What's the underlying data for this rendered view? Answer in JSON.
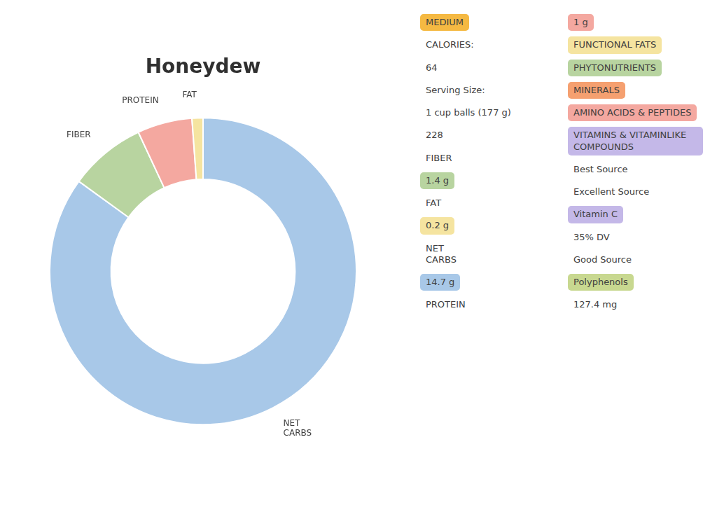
{
  "chart_data": {
    "type": "doughnut",
    "title": "Honeydew",
    "categories": [
      "NET\nCARBS",
      "FIBER",
      "PROTEIN",
      "FAT"
    ],
    "values": [
      14.7,
      1.4,
      1.0,
      0.2
    ],
    "colors": [
      "#A8C8E8",
      "#B8D4A0",
      "#F4A8A0",
      "#F5E4A0"
    ],
    "data_labels": false,
    "annotations": [
      {
        "text": "MEDIUM",
        "color": "#F5B942"
      },
      {
        "text": "CALORIES:"
      },
      {
        "text": "64"
      },
      {
        "text": "Serving Size:"
      },
      {
        "text": "1 cup balls (177 g)"
      },
      {
        "text": "228"
      },
      {
        "text": "FIBER"
      },
      {
        "text": "1.4 g",
        "color": "#B8D4A0"
      },
      {
        "text": "FAT"
      },
      {
        "text": "0.2 g",
        "color": "#F5E4A0"
      },
      {
        "text": "NET\nCARBS"
      },
      {
        "text": "14.7 g",
        "color": "#A8C8E8"
      },
      {
        "text": "PROTEIN"
      },
      {
        "text": "1 g",
        "color": "#F4A8A0"
      },
      {
        "text": "FUNCTIONAL FATS",
        "color": "#F5E4A0"
      },
      {
        "text": "PHYTONUTRIENTS",
        "color": "#B8D4A0"
      },
      {
        "text": "MINERALS",
        "color": "#F5A070"
      },
      {
        "text": "AMINO ACIDS & PEPTIDES",
        "color": "#F4A8A0"
      },
      {
        "text": "VITAMINS & VITAMINLIKE COMPOUNDS",
        "color": "#C4B8E8"
      },
      {
        "text": "Best Source"
      },
      {
        "text": "Excellent Source"
      },
      {
        "text": "Vitamin C",
        "color": "#C4B8E8"
      },
      {
        "text": "35% DV"
      },
      {
        "text": "Good Source"
      },
      {
        "text": "Polyphenols",
        "color": "#C8D890"
      },
      {
        "text": "127.4 mg"
      }
    ]
  }
}
